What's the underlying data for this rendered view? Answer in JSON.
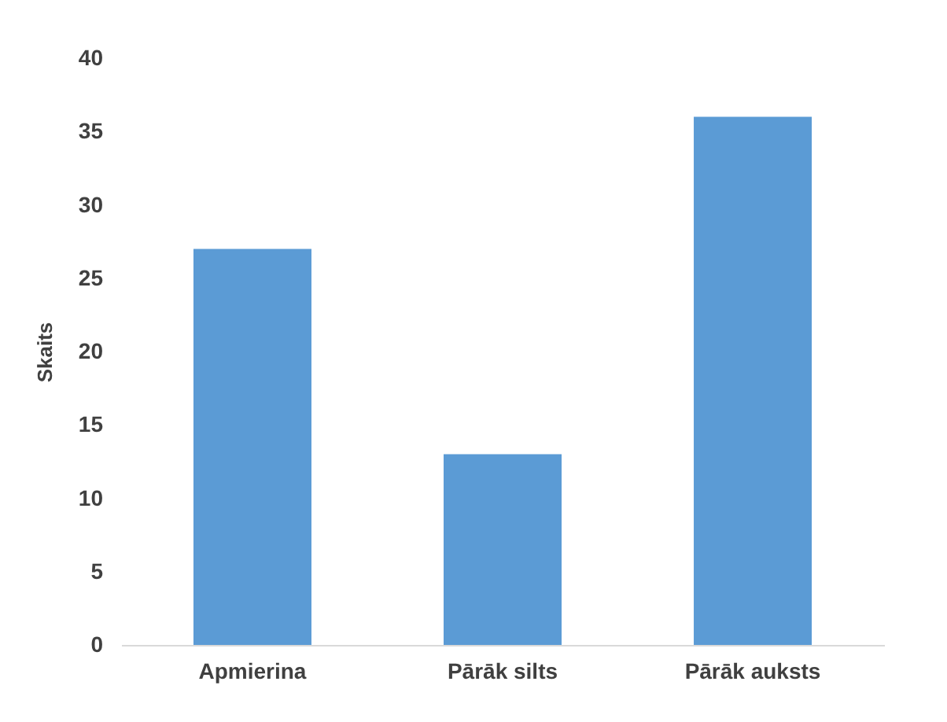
{
  "chart_data": {
    "type": "bar",
    "ylabel": "Skaits",
    "categories": [
      "Apmierina",
      "Pārāk silts",
      "Pārāk auksts"
    ],
    "values": [
      27,
      13,
      36
    ],
    "color": "#5b9bd5",
    "ylim": [
      0,
      40
    ],
    "yticks": [
      0,
      5,
      10,
      15,
      20,
      25,
      30,
      35,
      40
    ],
    "grid": false
  }
}
